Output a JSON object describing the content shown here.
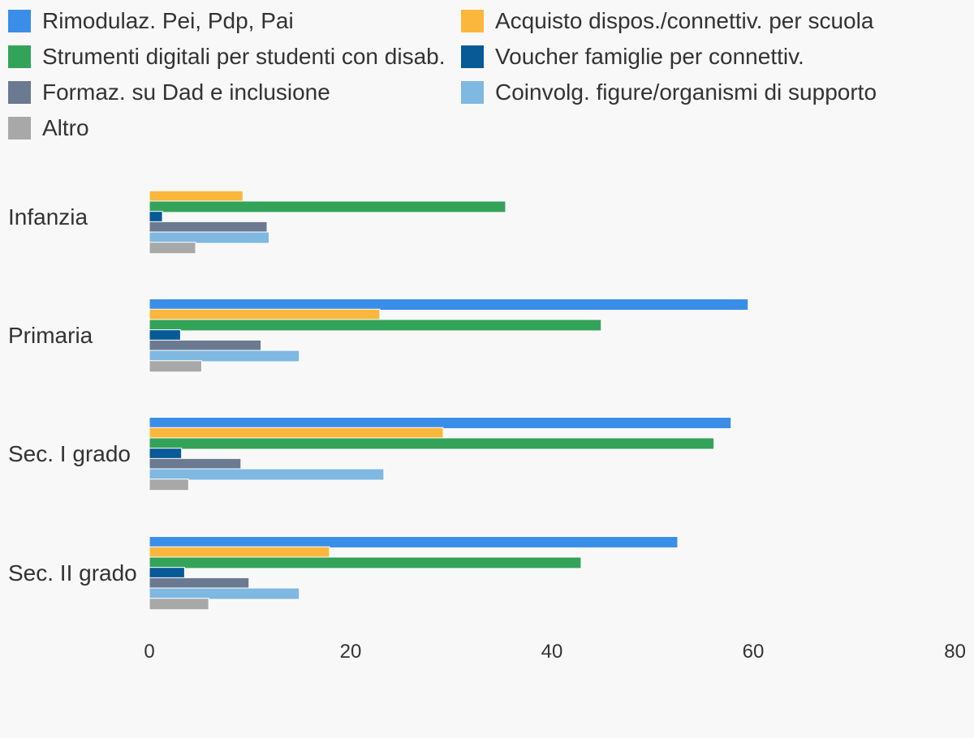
{
  "chart_data": {
    "type": "bar",
    "orientation": "horizontal",
    "categories": [
      "Infanzia",
      "Primaria",
      "Sec. I grado",
      "Sec. II grado"
    ],
    "series": [
      {
        "name": "Rimodulaz. Pei, Pdp, Pai",
        "color": "#3b8ee8",
        "values": [
          null,
          59.5,
          57.8,
          52.5
        ]
      },
      {
        "name": "Acquisto dispos./connettiv. per scuola",
        "color": "#fbb73c",
        "values": [
          9.3,
          22.9,
          29.2,
          17.9
        ]
      },
      {
        "name": "Strumenti digitali per studenti con disab.",
        "color": "#34a35a",
        "values": [
          35.4,
          44.9,
          56.1,
          42.9
        ]
      },
      {
        "name": "Voucher famiglie per connettiv.",
        "color": "#075a96",
        "values": [
          1.3,
          3.1,
          3.2,
          3.5
        ]
      },
      {
        "name": "Formaz. su Dad e inclusione",
        "color": "#6b7a90",
        "values": [
          11.7,
          11.1,
          9.1,
          9.9
        ]
      },
      {
        "name": "Coinvolg. figure/organismi di supporto",
        "color": "#7fb8e1",
        "values": [
          11.9,
          14.9,
          23.3,
          14.9
        ]
      },
      {
        "name": "Altro",
        "color": "#a8a8a8",
        "values": [
          4.6,
          5.2,
          3.9,
          5.9
        ]
      }
    ],
    "xlim": [
      0,
      80
    ],
    "xticks": [
      "0",
      "20",
      "40",
      "60",
      "80"
    ],
    "grid": false,
    "legend_position": "top",
    "title": "",
    "xlabel": "",
    "ylabel": ""
  }
}
